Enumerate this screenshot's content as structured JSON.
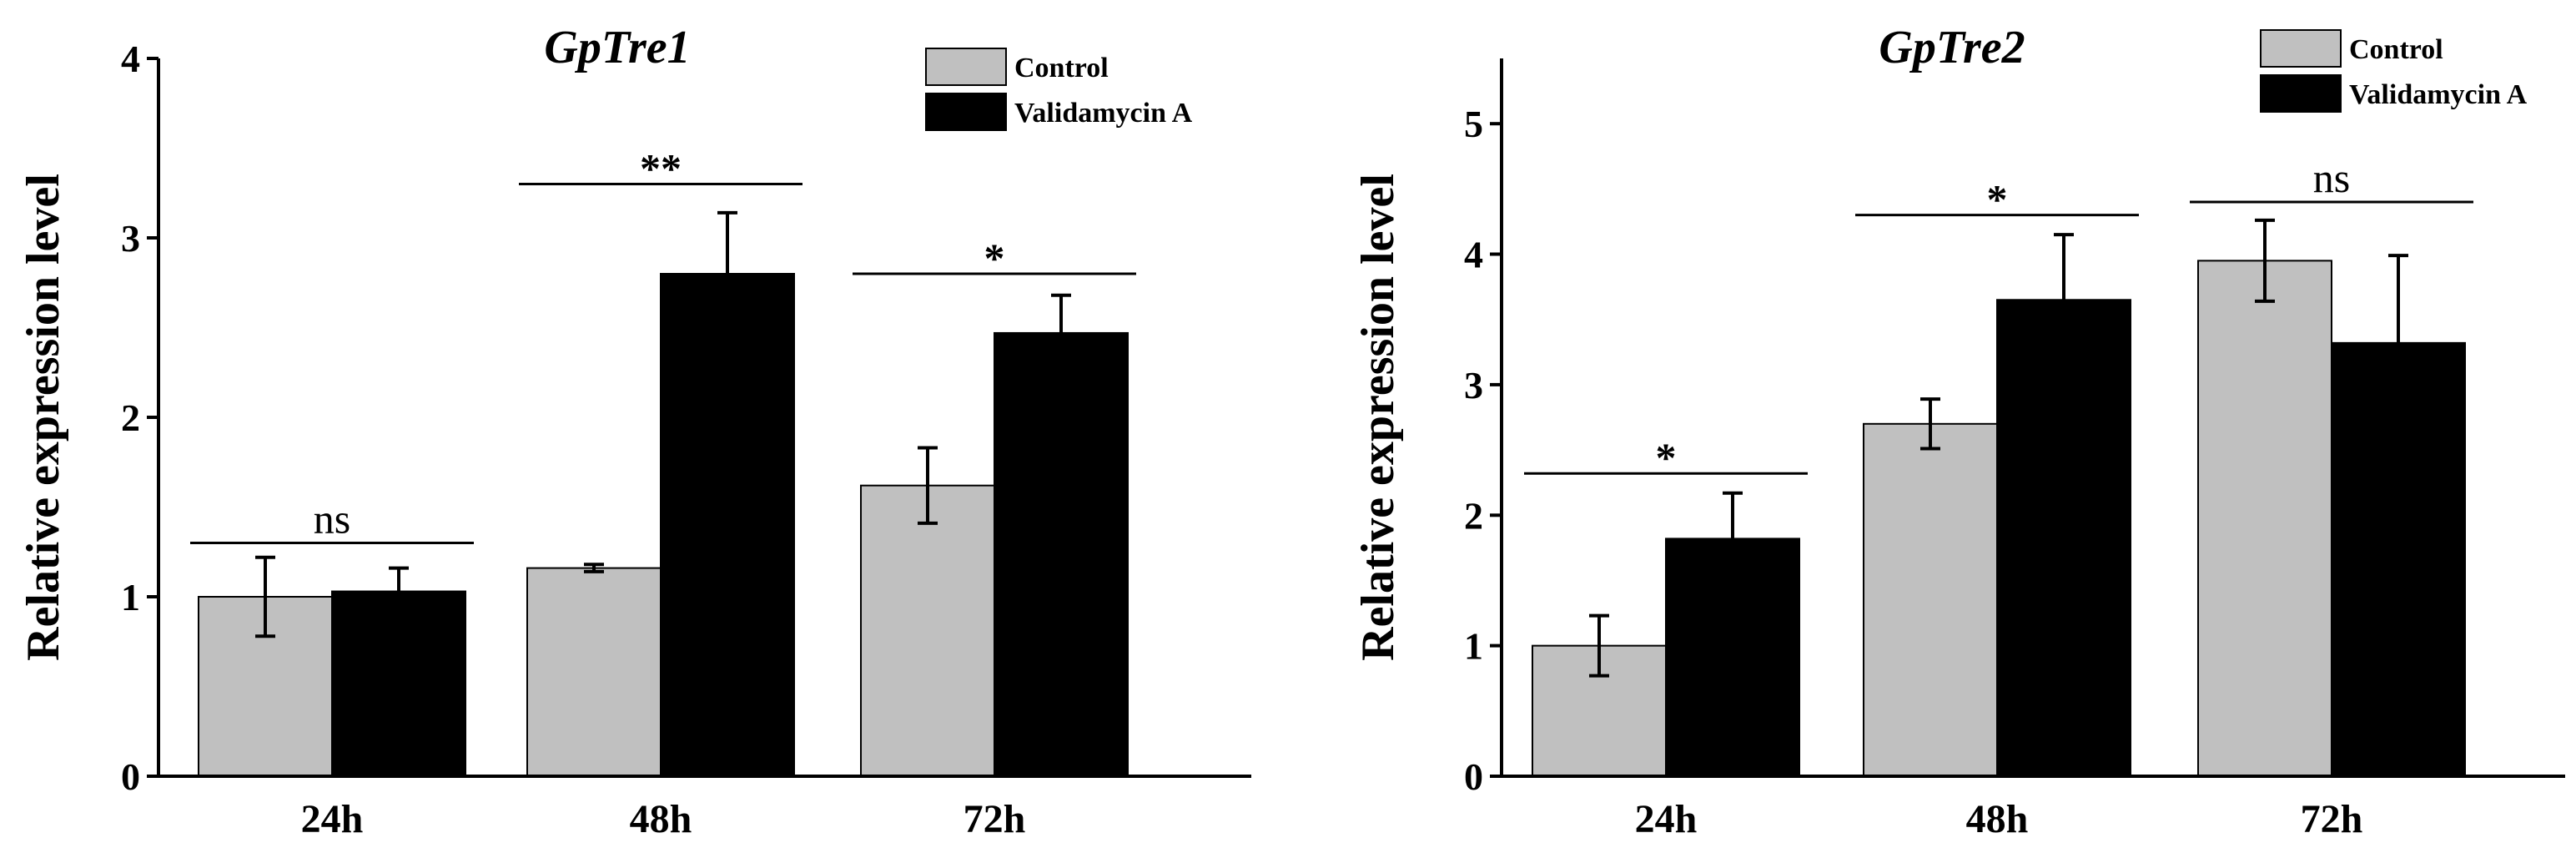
{
  "chart_data": [
    {
      "type": "bar",
      "title": "GpTre1",
      "xlabel": "",
      "ylabel": "Relative expression level",
      "categories": [
        "24h",
        "48h",
        "72h"
      ],
      "ylim": [
        0,
        4
      ],
      "yticks": [
        0,
        1,
        2,
        3,
        4
      ],
      "series": [
        {
          "name": "Control",
          "color": "#c0c0c0",
          "values": [
            1.0,
            1.16,
            1.62
          ],
          "errors": [
            0.22,
            0.02,
            0.21
          ]
        },
        {
          "name": "Validamycin A",
          "color": "#000000",
          "values": [
            1.03,
            2.8,
            2.47
          ],
          "errors": [
            0.13,
            0.34,
            0.21
          ]
        }
      ],
      "significance": [
        {
          "category": "24h",
          "label": "ns",
          "level": 1.3
        },
        {
          "category": "48h",
          "label": "**",
          "level": 3.3
        },
        {
          "category": "72h",
          "label": "*",
          "level": 2.8
        }
      ],
      "legend_position": "top-right",
      "grid": false
    },
    {
      "type": "bar",
      "title": "GpTre2",
      "xlabel": "",
      "ylabel": "Relative expression level",
      "categories": [
        "24h",
        "48h",
        "72h"
      ],
      "ylim": [
        0,
        5.5
      ],
      "yticks": [
        0,
        1,
        2,
        3,
        4,
        5
      ],
      "series": [
        {
          "name": "Control",
          "color": "#c0c0c0",
          "values": [
            1.0,
            2.7,
            3.95
          ],
          "errors": [
            0.23,
            0.19,
            0.31
          ]
        },
        {
          "name": "Validamycin A",
          "color": "#000000",
          "values": [
            1.82,
            3.65,
            3.32
          ],
          "errors": [
            0.35,
            0.5,
            0.67
          ]
        }
      ],
      "significance": [
        {
          "category": "24h",
          "label": "*",
          "level": 2.32
        },
        {
          "category": "48h",
          "label": "*",
          "level": 4.3
        },
        {
          "category": "72h",
          "label": "ns",
          "level": 4.4
        }
      ],
      "legend_position": "top-right",
      "grid": false
    }
  ]
}
